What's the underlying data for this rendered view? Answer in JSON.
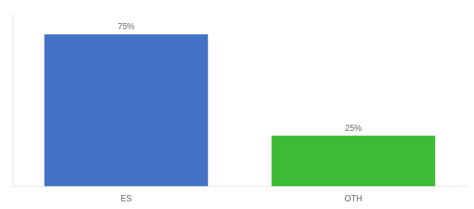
{
  "chart_data": {
    "type": "bar",
    "categories": [
      "ES",
      "OTH"
    ],
    "values": [
      75,
      25
    ],
    "value_labels": [
      "75%",
      "25%"
    ],
    "data_labels": true,
    "colors": [
      "#4472c4",
      "#3dbb35"
    ],
    "ylim": [
      0,
      85
    ],
    "tick_labels": "x",
    "grid": false
  }
}
